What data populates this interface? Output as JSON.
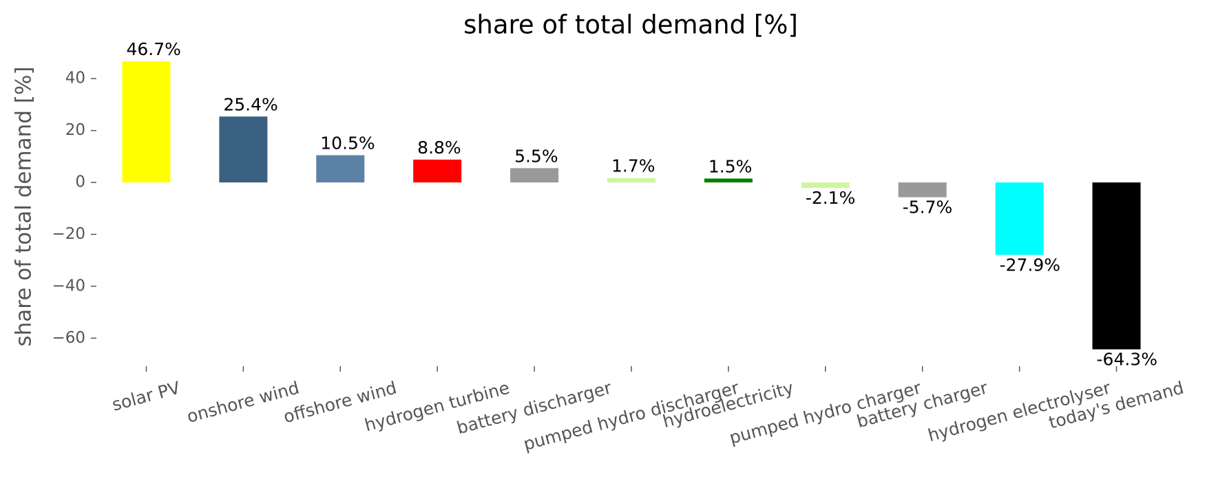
{
  "chart_data": {
    "type": "bar",
    "title": "share of total demand [%]",
    "ylabel": "share of total demand [%]",
    "categories": [
      "solar PV",
      "onshore wind",
      "offshore wind",
      "hydrogen turbine",
      "battery discharger",
      "pumped hydro discharger",
      "hydroelectricity",
      "pumped hydro charger",
      "battery charger",
      "hydrogen electrolyser",
      "today's demand"
    ],
    "values": [
      46.7,
      25.4,
      10.5,
      8.8,
      5.5,
      1.7,
      1.5,
      -2.1,
      -5.7,
      -27.9,
      -64.3
    ],
    "value_labels": [
      "46.7%",
      "25.4%",
      "10.5%",
      "8.8%",
      "5.5%",
      "1.7%",
      "1.5%",
      "-2.1%",
      "-5.7%",
      "-27.9%",
      "-64.3%"
    ],
    "colors": [
      "#ffff00",
      "#3b6182",
      "#5b82a6",
      "#ff0000",
      "#999999",
      "#d0f5a0",
      "#008000",
      "#d0f5a0",
      "#999999",
      "#00ffff",
      "#000000"
    ],
    "ylim": [
      -70,
      52
    ],
    "yticks": [
      {
        "value": -60,
        "label": "−60"
      },
      {
        "value": -40,
        "label": "−40"
      },
      {
        "value": -20,
        "label": "−20"
      },
      0,
      20,
      40
    ],
    "grid": false
  }
}
